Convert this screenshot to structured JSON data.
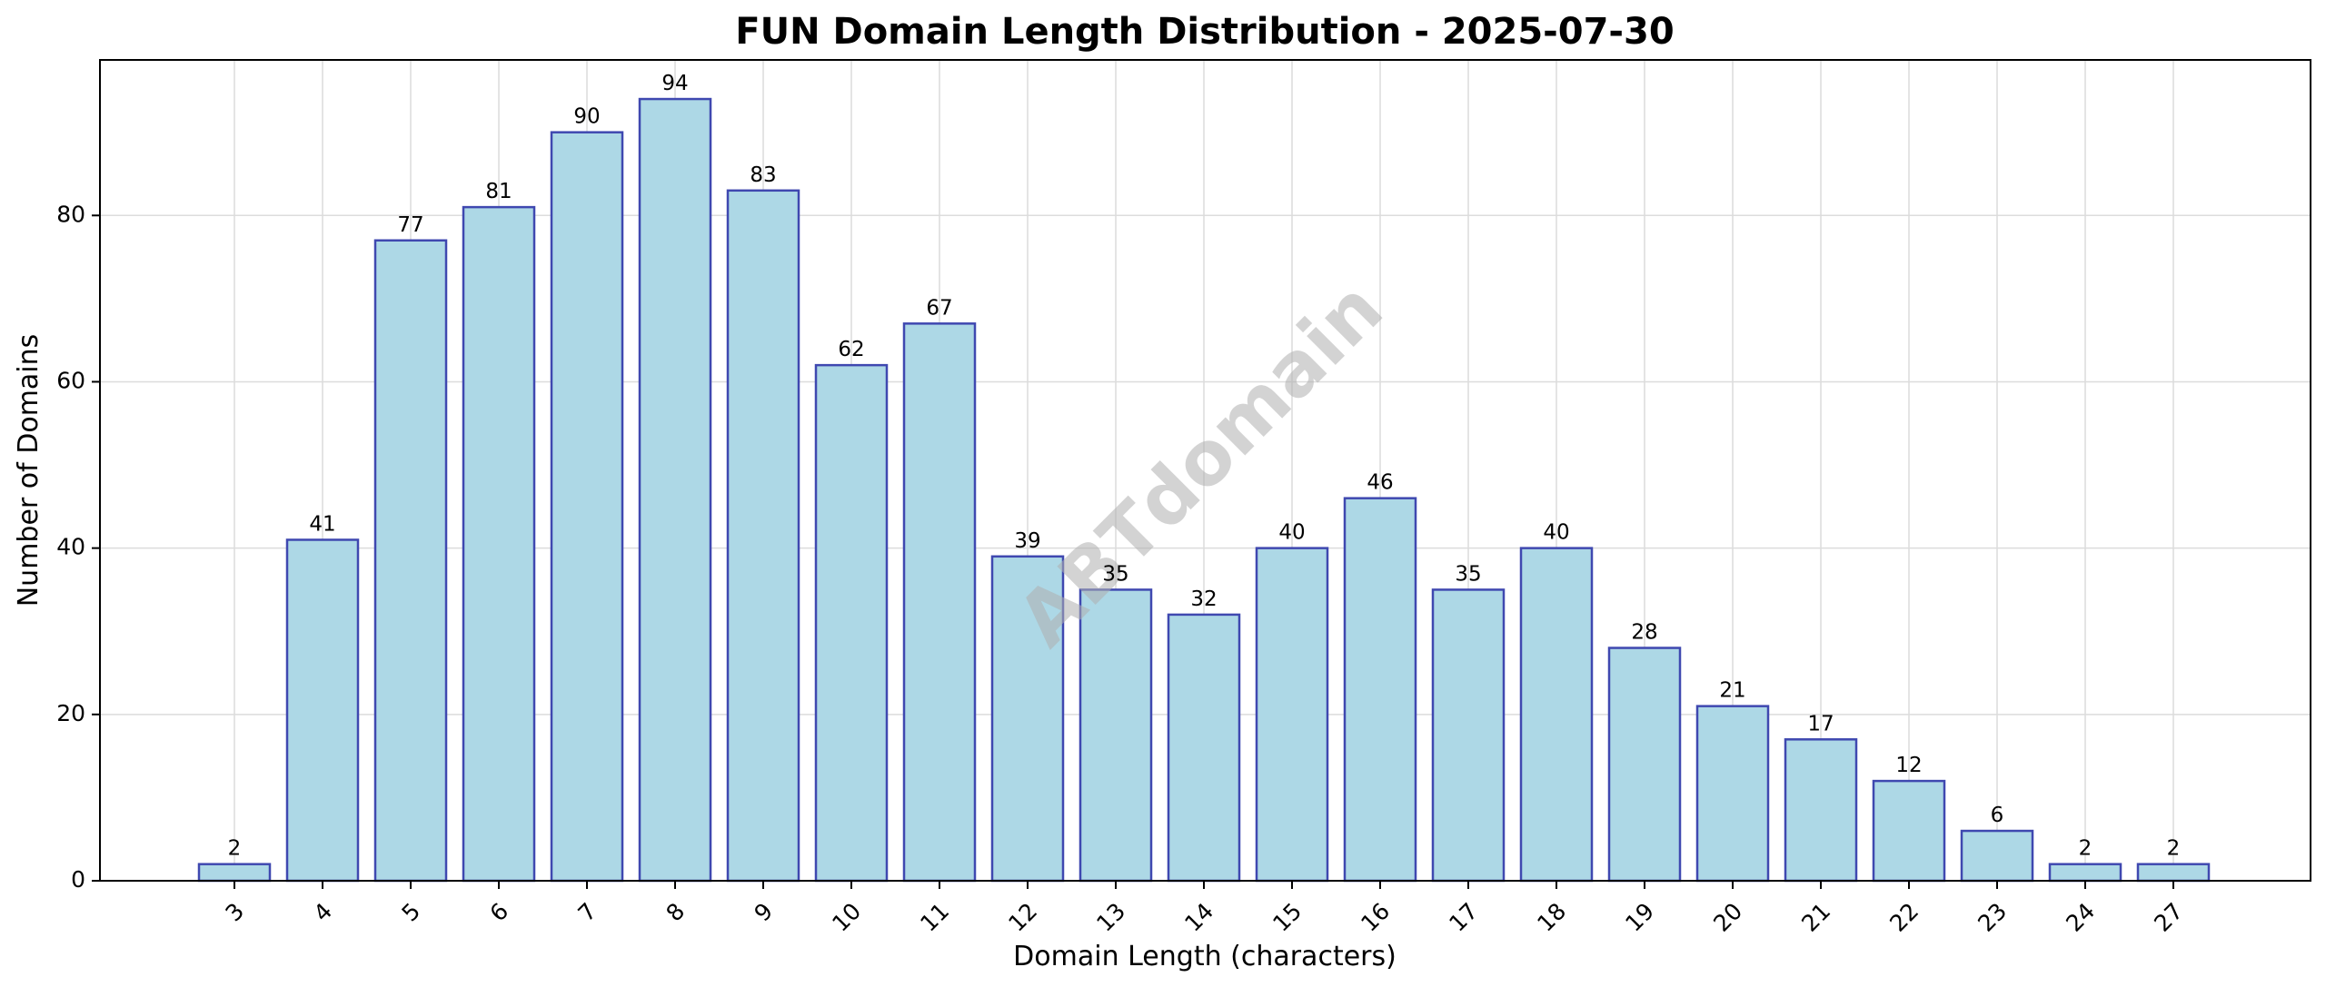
{
  "chart_data": {
    "type": "bar",
    "title": "FUN Domain Length Distribution - 2025-07-30",
    "xlabel": "Domain Length (characters)",
    "ylabel": "Number of Domains",
    "categories": [
      "3",
      "4",
      "5",
      "6",
      "7",
      "8",
      "9",
      "10",
      "11",
      "12",
      "13",
      "14",
      "15",
      "16",
      "17",
      "18",
      "19",
      "20",
      "21",
      "22",
      "23",
      "24",
      "27"
    ],
    "values": [
      2,
      41,
      77,
      81,
      90,
      94,
      83,
      62,
      67,
      39,
      35,
      32,
      40,
      46,
      35,
      40,
      28,
      21,
      17,
      12,
      6,
      2,
      2
    ],
    "ylim": [
      0,
      98.7
    ],
    "yticks": [
      0,
      20,
      40,
      60,
      80
    ],
    "grid": true,
    "bar_color": "#add8e6",
    "bar_edge_color": "#3f48b0",
    "x_tick_rotation": "45",
    "watermark": "ABTdomain"
  }
}
